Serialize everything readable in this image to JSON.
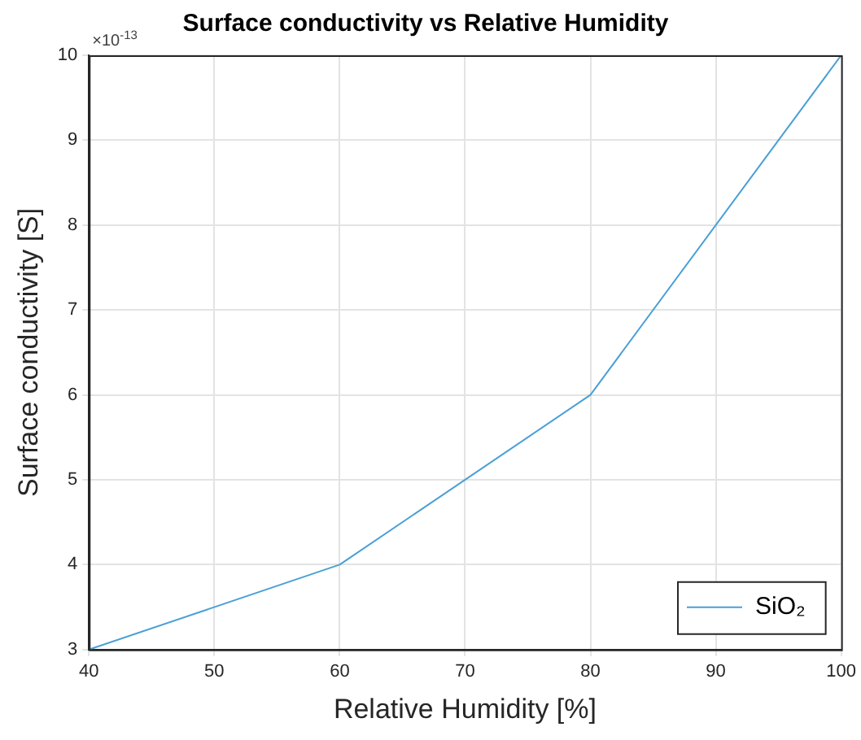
{
  "chart_data": {
    "type": "line",
    "title": "Surface conductivity vs Relative Humidity",
    "xlabel": "Relative Humidity [%]",
    "ylabel": "Surface conductivity [S]",
    "annotations": [
      "×10$^{-13}$"
    ],
    "x": [
      40,
      60,
      80,
      100
    ],
    "series": [
      {
        "name": "SiO₂",
        "color": "#4a9fd6",
        "values": [
          3,
          4,
          6,
          10
        ]
      }
    ],
    "xlim": [
      40,
      100
    ],
    "xticks": [
      40,
      50,
      60,
      70,
      80,
      90,
      100
    ],
    "ylim": [
      3,
      10
    ],
    "yticks": [
      3,
      4,
      5,
      6,
      7,
      8,
      9,
      10
    ],
    "grid": true,
    "legend": "bottom right",
    "marker": "none",
    "line_style": "solid"
  }
}
